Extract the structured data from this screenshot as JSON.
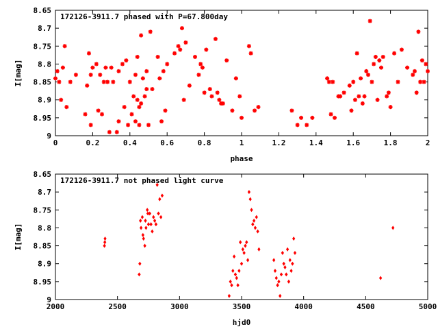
{
  "chart_data": [
    {
      "type": "scatter",
      "title": "172126-3911.7 phased with P=67.800day",
      "xlabel": "phase",
      "ylabel": "I[mag]",
      "xlim": [
        0,
        2
      ],
      "ylim": [
        9,
        8.65
      ],
      "y_inverted": true,
      "xticks": [
        "0",
        "0.2",
        "0.4",
        "0.6",
        "0.8",
        "1",
        "1.2",
        "1.4",
        "1.6",
        "1.8",
        "2"
      ],
      "yticks": [
        "8.65",
        "8.7",
        "8.75",
        "8.8",
        "8.85",
        "8.9",
        "8.95",
        "9"
      ],
      "marker_color": "#ff0000",
      "series": [
        {
          "x": [
            0.0,
            0.01,
            0.02,
            0.03,
            0.04,
            0.05,
            0.06,
            0.08,
            0.11,
            0.16,
            0.17,
            0.18,
            0.19,
            0.19,
            0.2,
            0.22,
            0.23,
            0.24,
            0.25,
            0.26,
            0.27,
            0.28,
            0.29,
            0.3,
            0.31,
            0.33,
            0.34,
            0.34,
            0.36,
            0.37,
            0.38,
            0.39,
            0.4,
            0.41,
            0.42,
            0.43,
            0.43,
            0.44,
            0.44,
            0.45,
            0.45,
            0.46,
            0.46,
            0.47,
            0.48,
            0.49,
            0.49,
            0.5,
            0.51,
            0.52,
            0.55,
            0.56,
            0.57,
            0.58,
            0.59,
            0.6,
            0.64,
            0.66,
            0.67,
            0.68,
            0.69,
            0.7,
            0.72,
            0.75,
            0.77,
            0.78,
            0.79,
            0.8,
            0.81,
            0.83,
            0.84,
            0.86,
            0.87,
            0.88,
            0.89,
            0.9,
            0.92,
            0.95,
            0.97,
            0.99,
            1.0,
            1.04,
            1.05,
            1.07,
            1.09,
            1.27,
            1.3,
            1.32,
            1.35,
            1.38,
            1.46,
            1.47,
            1.48,
            1.49,
            1.5,
            1.52,
            1.53,
            1.55,
            1.58,
            1.59,
            1.6,
            1.61,
            1.62,
            1.63,
            1.64,
            1.65,
            1.66,
            1.67,
            1.68,
            1.69,
            1.7,
            1.71,
            1.72,
            1.73,
            1.74,
            1.75,
            1.76,
            1.78,
            1.79,
            1.8,
            1.82,
            1.84,
            1.86,
            1.89,
            1.92,
            1.93,
            1.94,
            1.95,
            1.96,
            1.97,
            1.98,
            1.99,
            2.0
          ],
          "y": [
            8.84,
            8.82,
            8.85,
            8.9,
            8.81,
            8.75,
            8.92,
            8.85,
            8.83,
            8.94,
            8.86,
            8.77,
            8.97,
            8.83,
            8.81,
            8.8,
            8.93,
            8.83,
            8.94,
            8.85,
            8.81,
            8.85,
            8.99,
            8.81,
            8.85,
            8.99,
            8.96,
            8.82,
            8.8,
            8.92,
            8.79,
            8.97,
            8.85,
            8.94,
            8.89,
            8.96,
            8.83,
            8.9,
            8.78,
            8.92,
            8.97,
            8.91,
            8.72,
            8.84,
            8.89,
            8.82,
            8.87,
            8.97,
            8.71,
            8.87,
            8.78,
            8.84,
            8.96,
            8.82,
            8.93,
            8.8,
            8.77,
            8.75,
            8.76,
            8.7,
            8.9,
            8.74,
            8.86,
            8.78,
            8.83,
            8.8,
            8.81,
            8.88,
            8.76,
            8.87,
            8.89,
            8.73,
            8.88,
            8.9,
            8.91,
            8.91,
            8.79,
            8.93,
            8.84,
            8.89,
            8.95,
            8.75,
            8.77,
            8.93,
            8.92,
            8.93,
            8.97,
            8.95,
            8.97,
            8.95,
            8.84,
            8.85,
            8.94,
            8.85,
            8.95,
            8.89,
            8.89,
            8.88,
            8.86,
            8.93,
            8.85,
            8.9,
            8.77,
            8.89,
            8.84,
            8.91,
            8.89,
            8.82,
            8.83,
            8.68,
            8.85,
            8.8,
            8.78,
            8.9,
            8.79,
            8.81,
            8.78,
            8.89,
            8.88,
            8.92,
            8.77,
            8.85,
            8.76,
            8.81,
            8.83,
            8.82,
            8.88,
            8.71,
            8.85,
            8.79,
            8.85,
            8.8,
            8.82
          ]
        }
      ]
    },
    {
      "type": "scatter",
      "title": "172126-3911.7 not phased light curve",
      "xlabel": "hjd0",
      "ylabel": "I[mag]",
      "xlim": [
        2000,
        5000
      ],
      "ylim": [
        9,
        8.65
      ],
      "y_inverted": true,
      "xticks": [
        "2000",
        "2500",
        "3000",
        "3500",
        "4000",
        "4500",
        "5000"
      ],
      "yticks": [
        "8.65",
        "8.7",
        "8.75",
        "8.8",
        "8.85",
        "8.9",
        "8.95",
        "9"
      ],
      "marker_color": "#ff0000",
      "series": [
        {
          "x": [
            2395,
            2398,
            2400,
            2675,
            2680,
            2685,
            2690,
            2700,
            2705,
            2710,
            2720,
            2725,
            2730,
            2740,
            2745,
            2750,
            2760,
            2770,
            2780,
            2790,
            2800,
            2810,
            2820,
            2830,
            2840,
            2850,
            2860,
            3400,
            3410,
            3420,
            3430,
            3440,
            3450,
            3460,
            3470,
            3480,
            3490,
            3500,
            3510,
            3520,
            3530,
            3540,
            3550,
            3560,
            3570,
            3580,
            3590,
            3600,
            3610,
            3620,
            3630,
            3640,
            3760,
            3770,
            3780,
            3790,
            3800,
            3810,
            3820,
            3830,
            3840,
            3850,
            3860,
            3870,
            3880,
            3890,
            3900,
            3910,
            3920,
            3930,
            4620,
            4720
          ],
          "y": [
            8.85,
            8.84,
            8.83,
            8.93,
            8.9,
            8.78,
            8.8,
            8.77,
            8.82,
            8.83,
            8.85,
            8.78,
            8.8,
            8.75,
            8.76,
            8.79,
            8.76,
            8.79,
            8.81,
            8.77,
            8.78,
            8.79,
            8.68,
            8.76,
            8.72,
            8.77,
            8.71,
            8.99,
            8.95,
            8.96,
            8.92,
            8.88,
            8.93,
            8.94,
            8.96,
            8.92,
            8.84,
            8.9,
            8.86,
            8.87,
            8.85,
            8.84,
            8.89,
            8.7,
            8.72,
            8.75,
            8.79,
            8.78,
            8.8,
            8.77,
            8.81,
            8.86,
            8.89,
            8.92,
            8.94,
            8.96,
            8.95,
            8.99,
            8.93,
            8.87,
            8.9,
            8.91,
            8.93,
            8.86,
            8.95,
            8.89,
            8.92,
            8.9,
            8.83,
            8.87,
            8.94,
            8.8
          ]
        }
      ]
    }
  ]
}
